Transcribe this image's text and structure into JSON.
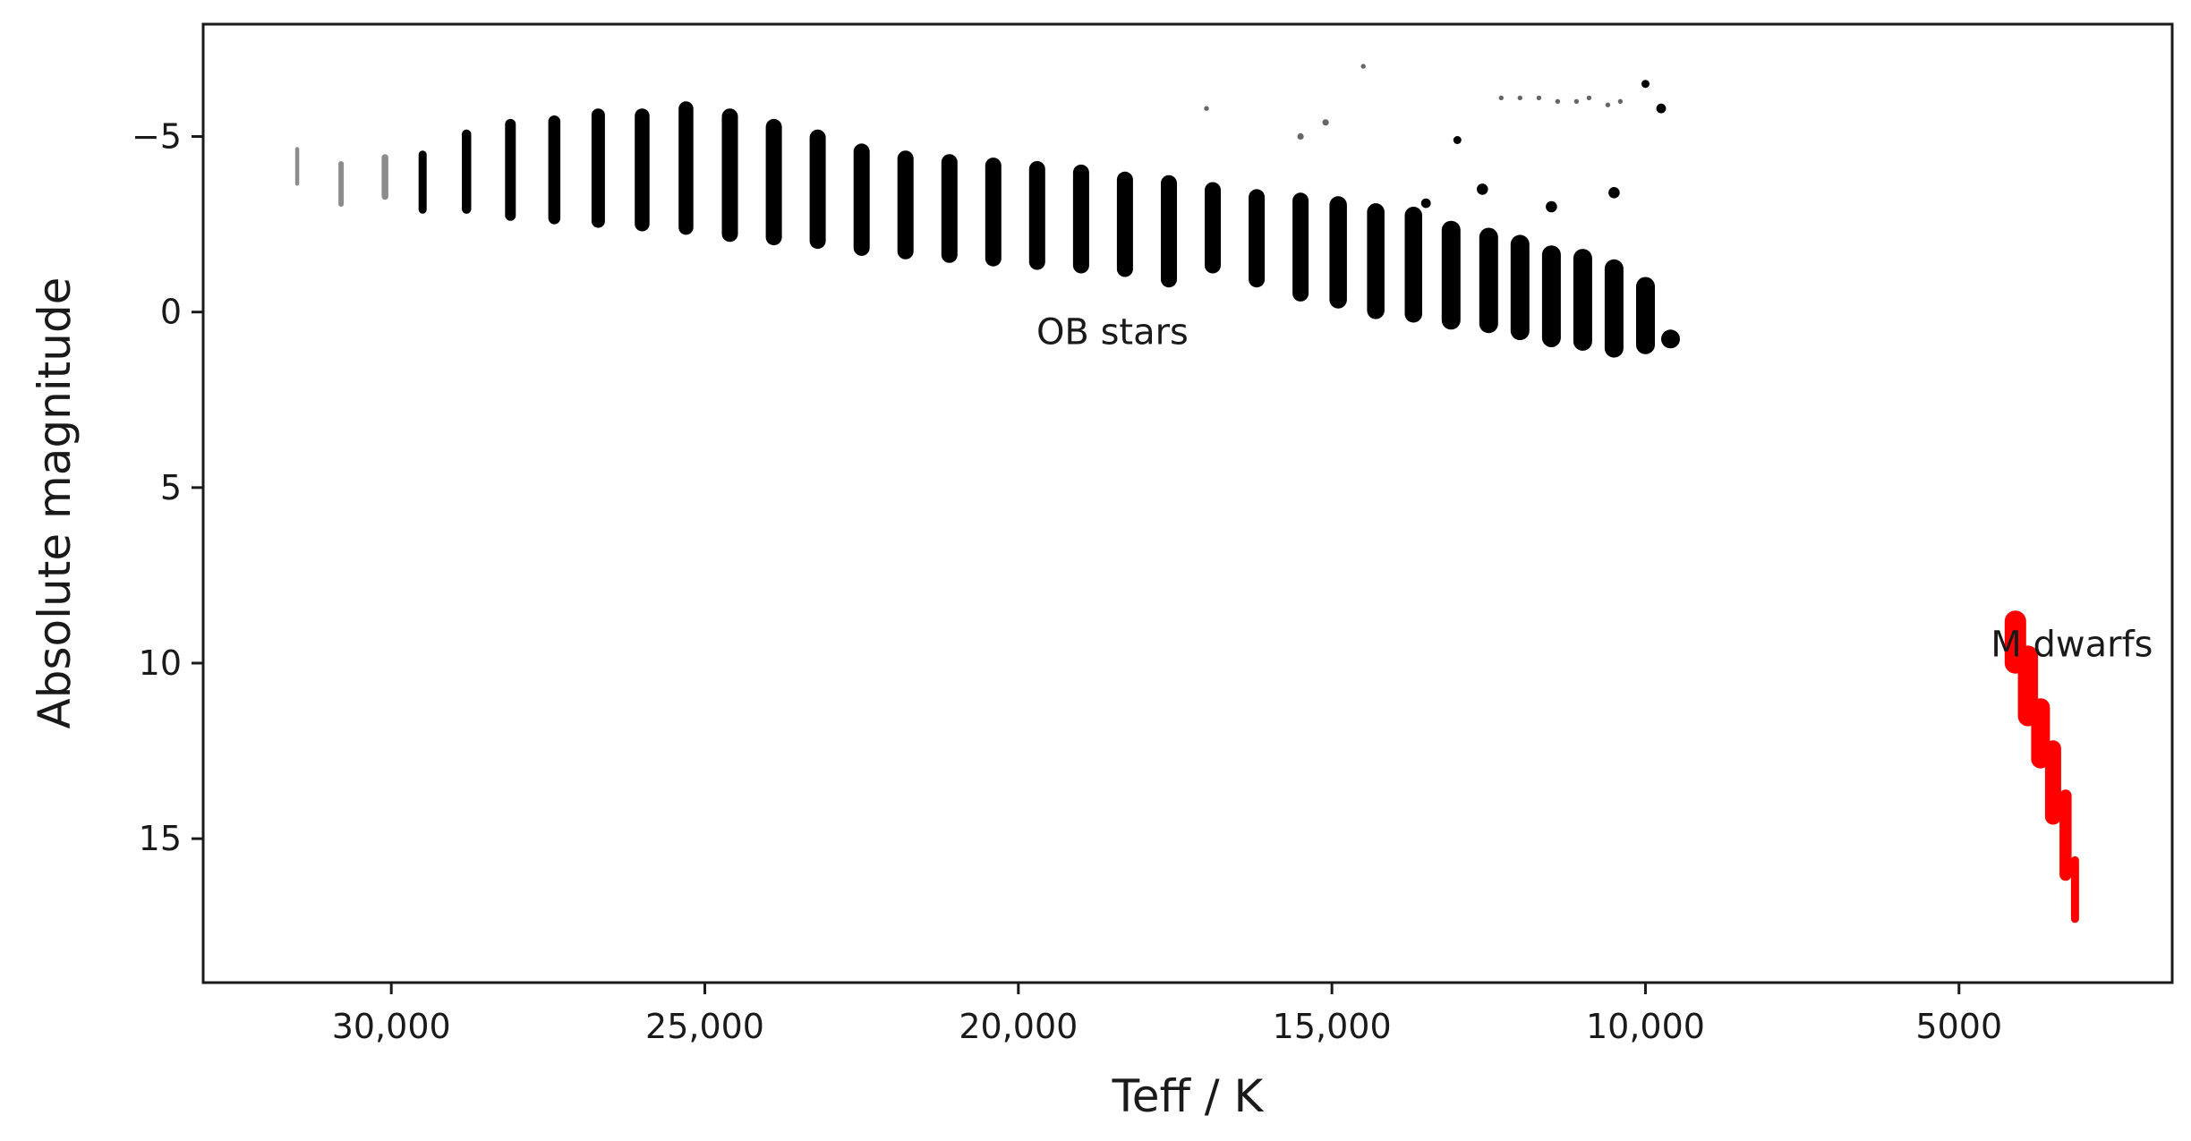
{
  "chart_data": {
    "type": "scatter",
    "title": "",
    "xlabel": "Teff / K",
    "ylabel": "Absolute magnitude",
    "xlim": [
      33000,
      1600
    ],
    "ylim": [
      19.1,
      -8.2
    ],
    "x_reversed": true,
    "y_reversed": true,
    "grid": false,
    "x_ticks": [
      {
        "value": 30000,
        "label": "30,000"
      },
      {
        "value": 25000,
        "label": "25,000"
      },
      {
        "value": 20000,
        "label": "20,000"
      },
      {
        "value": 15000,
        "label": "15,000"
      },
      {
        "value": 10000,
        "label": "10,000"
      },
      {
        "value": 5000,
        "label": "5000"
      }
    ],
    "y_ticks": [
      {
        "value": -5,
        "label": "−5"
      },
      {
        "value": 0,
        "label": "0"
      },
      {
        "value": 5,
        "label": "5"
      },
      {
        "value": 10,
        "label": "10"
      },
      {
        "value": 15,
        "label": "15"
      }
    ],
    "annotations": [
      {
        "text": "OB stars",
        "x": 18500,
        "y": 0.55
      },
      {
        "text": "M dwarfs",
        "x": 3200,
        "y": 9.45
      }
    ],
    "series": [
      {
        "color": "#000000",
        "columns": [
          {
            "x": 31500,
            "y_top": -4.7,
            "y_bottom": -3.6,
            "size": 3
          },
          {
            "x": 30800,
            "y_top": -4.3,
            "y_bottom": -3.0,
            "size": 4
          },
          {
            "x": 30100,
            "y_top": -4.5,
            "y_bottom": -3.2,
            "size": 5
          },
          {
            "x": 29500,
            "y_top": -4.6,
            "y_bottom": -2.8,
            "size": 6
          },
          {
            "x": 28800,
            "y_top": -5.2,
            "y_bottom": -2.8,
            "size": 7
          },
          {
            "x": 28100,
            "y_top": -5.5,
            "y_bottom": -2.6,
            "size": 8
          },
          {
            "x": 27400,
            "y_top": -5.6,
            "y_bottom": -2.5,
            "size": 9
          },
          {
            "x": 26700,
            "y_top": -5.8,
            "y_bottom": -2.4,
            "size": 10
          },
          {
            "x": 26000,
            "y_top": -5.8,
            "y_bottom": -2.3,
            "size": 11
          },
          {
            "x": 25300,
            "y_top": -6.0,
            "y_bottom": -2.2,
            "size": 11
          },
          {
            "x": 24600,
            "y_top": -5.8,
            "y_bottom": -2.0,
            "size": 12
          },
          {
            "x": 23900,
            "y_top": -5.5,
            "y_bottom": -1.9,
            "size": 12
          },
          {
            "x": 23200,
            "y_top": -5.2,
            "y_bottom": -1.8,
            "size": 12
          },
          {
            "x": 22500,
            "y_top": -4.8,
            "y_bottom": -1.6,
            "size": 12
          },
          {
            "x": 21800,
            "y_top": -4.6,
            "y_bottom": -1.5,
            "size": 12
          },
          {
            "x": 21100,
            "y_top": -4.5,
            "y_bottom": -1.4,
            "size": 12
          },
          {
            "x": 20400,
            "y_top": -4.4,
            "y_bottom": -1.3,
            "size": 12
          },
          {
            "x": 19700,
            "y_top": -4.3,
            "y_bottom": -1.2,
            "size": 12
          },
          {
            "x": 19000,
            "y_top": -4.2,
            "y_bottom": -1.1,
            "size": 12
          },
          {
            "x": 18300,
            "y_top": -4.0,
            "y_bottom": -1.0,
            "size": 12
          },
          {
            "x": 17600,
            "y_top": -3.9,
            "y_bottom": -0.7,
            "size": 12
          },
          {
            "x": 16900,
            "y_top": -3.7,
            "y_bottom": -1.1,
            "size": 12
          },
          {
            "x": 16200,
            "y_top": -3.5,
            "y_bottom": -0.7,
            "size": 12
          },
          {
            "x": 15500,
            "y_top": -3.4,
            "y_bottom": -0.3,
            "size": 12
          },
          {
            "x": 14900,
            "y_top": -3.3,
            "y_bottom": -0.1,
            "size": 13
          },
          {
            "x": 14300,
            "y_top": -3.1,
            "y_bottom": 0.2,
            "size": 13
          },
          {
            "x": 13700,
            "y_top": -3.0,
            "y_bottom": 0.3,
            "size": 13
          },
          {
            "x": 13100,
            "y_top": -2.6,
            "y_bottom": 0.5,
            "size": 14
          },
          {
            "x": 12500,
            "y_top": -2.4,
            "y_bottom": 0.6,
            "size": 14
          },
          {
            "x": 12000,
            "y_top": -2.2,
            "y_bottom": 0.8,
            "size": 14
          },
          {
            "x": 11500,
            "y_top": -1.9,
            "y_bottom": 1.0,
            "size": 14
          },
          {
            "x": 11000,
            "y_top": -1.8,
            "y_bottom": 1.1,
            "size": 14
          },
          {
            "x": 10500,
            "y_top": -1.5,
            "y_bottom": 1.3,
            "size": 14
          },
          {
            "x": 10000,
            "y_top": -1.0,
            "y_bottom": 1.2,
            "size": 14
          },
          {
            "x": 9600,
            "y_top": 0.5,
            "y_bottom": 1.0,
            "size": 14
          }
        ],
        "points": [
          {
            "x": 17000,
            "y": -5.8,
            "size": 3
          },
          {
            "x": 15500,
            "y": -5.0,
            "size": 4
          },
          {
            "x": 15100,
            "y": -5.4,
            "size": 4
          },
          {
            "x": 14500,
            "y": -7.0,
            "size": 3
          },
          {
            "x": 13500,
            "y": -3.1,
            "size": 6
          },
          {
            "x": 13000,
            "y": -4.9,
            "size": 5
          },
          {
            "x": 12600,
            "y": -3.5,
            "size": 7
          },
          {
            "x": 11500,
            "y": -3.0,
            "size": 7
          },
          {
            "x": 10500,
            "y": -3.4,
            "size": 7
          },
          {
            "x": 10000,
            "y": -6.5,
            "size": 5
          },
          {
            "x": 9750,
            "y": -5.8,
            "size": 6
          },
          {
            "x": 12300,
            "y": -6.1,
            "size": 3
          },
          {
            "x": 12000,
            "y": -6.1,
            "size": 3
          },
          {
            "x": 11700,
            "y": -6.1,
            "size": 3
          },
          {
            "x": 11400,
            "y": -6.0,
            "size": 3
          },
          {
            "x": 11100,
            "y": -6.0,
            "size": 3
          },
          {
            "x": 10900,
            "y": -6.1,
            "size": 3
          },
          {
            "x": 10600,
            "y": -5.9,
            "size": 3
          },
          {
            "x": 10400,
            "y": -6.0,
            "size": 3
          }
        ]
      },
      {
        "color": "#ff0000",
        "columns": [
          {
            "x": 4100,
            "y_top": 8.5,
            "y_bottom": 10.3,
            "size": 16
          },
          {
            "x": 3900,
            "y_top": 9.5,
            "y_bottom": 11.8,
            "size": 15
          },
          {
            "x": 3700,
            "y_top": 11.0,
            "y_bottom": 13.0,
            "size": 14
          },
          {
            "x": 3500,
            "y_top": 12.2,
            "y_bottom": 14.6,
            "size": 12
          },
          {
            "x": 3300,
            "y_top": 13.6,
            "y_bottom": 16.2,
            "size": 9
          },
          {
            "x": 3150,
            "y_top": 15.5,
            "y_bottom": 17.4,
            "size": 6
          }
        ],
        "points": []
      }
    ]
  }
}
